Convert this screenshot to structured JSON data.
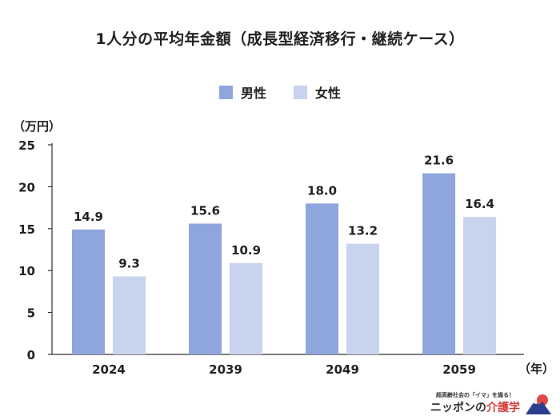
{
  "title": "1人分の平均年金額（成長型経済移行・継続ケース）",
  "legend": [
    {
      "name": "男性",
      "color": "#8fa5dd"
    },
    {
      "name": "女性",
      "color": "#c8d3ee"
    }
  ],
  "unit_label": "（万円）",
  "year_suffix": "（年）",
  "brand": {
    "tagline": "超高齢社会の「イマ」を識る！",
    "name_prefix": "ニッポンの",
    "name_accent": "介護学",
    "logo_icon": "mountain-sun-logo-icon"
  },
  "chart_data": {
    "type": "bar",
    "title": "1人分の平均年金額（成長型経済移行・継続ケース）",
    "categories": [
      "2024",
      "2039",
      "2049",
      "2059"
    ],
    "series": [
      {
        "name": "男性",
        "values": [
          14.9,
          15.6,
          18.0,
          21.6
        ],
        "color": "#8fa5dd"
      },
      {
        "name": "女性",
        "values": [
          9.3,
          10.9,
          13.2,
          16.4
        ],
        "color": "#c8d3ee"
      }
    ],
    "ylabel": "（万円）",
    "xlabel": "（年）",
    "ylim": [
      0,
      25
    ],
    "yticks": [
      0,
      5,
      10,
      15,
      20,
      25
    ],
    "grid": false,
    "legend_position": "top-center",
    "data_labels": true
  }
}
